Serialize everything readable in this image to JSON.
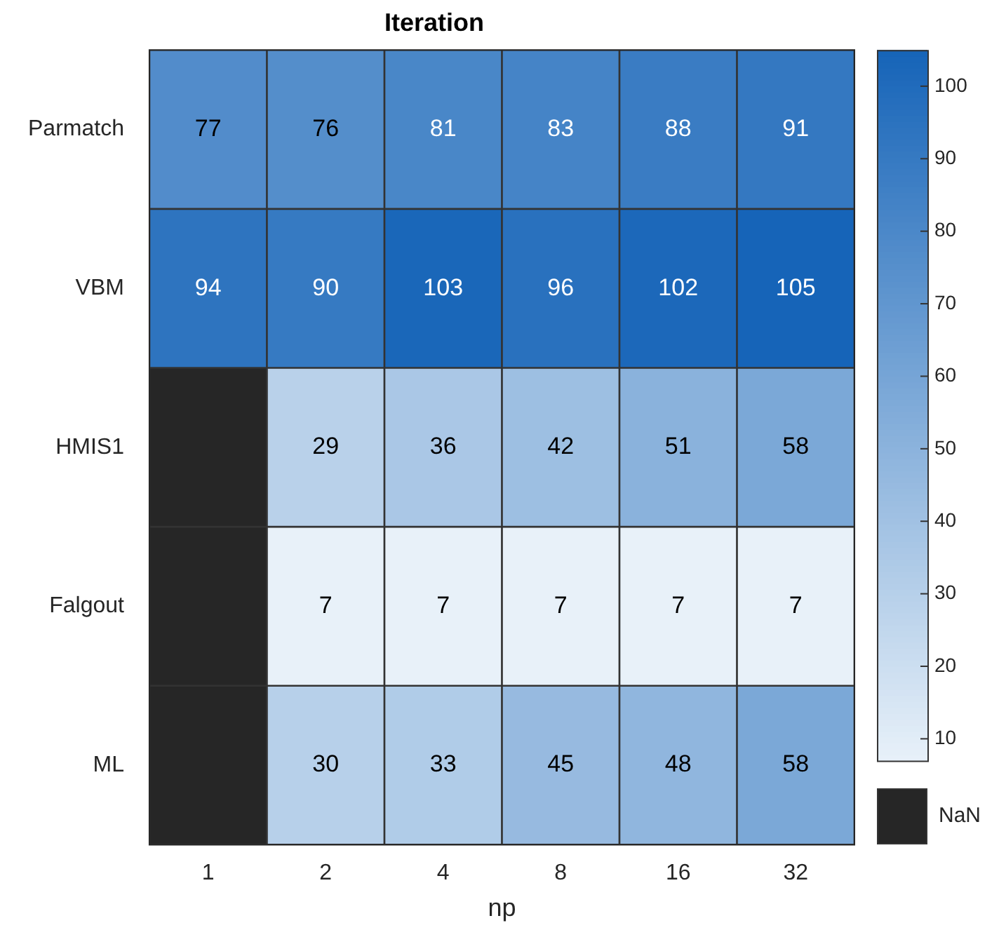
{
  "chart_data": {
    "type": "heatmap",
    "title": "Iteration",
    "xlabel": "np",
    "categories": [
      "1",
      "2",
      "4",
      "8",
      "16",
      "32"
    ],
    "y_categories": [
      "Parmatch",
      "VBM",
      "HMIS1",
      "Falgout",
      "ML"
    ],
    "cells": [
      [
        77,
        76,
        81,
        83,
        88,
        91
      ],
      [
        94,
        90,
        103,
        96,
        102,
        105
      ],
      [
        null,
        29,
        36,
        42,
        51,
        58
      ],
      [
        null,
        7,
        7,
        7,
        7,
        7
      ],
      [
        null,
        30,
        33,
        45,
        48,
        58
      ]
    ],
    "clim": [
      7,
      105
    ],
    "cticks": [
      10,
      20,
      30,
      40,
      50,
      60,
      70,
      80,
      90,
      100
    ],
    "data_labels": true,
    "annotations": [
      "NaN"
    ]
  }
}
